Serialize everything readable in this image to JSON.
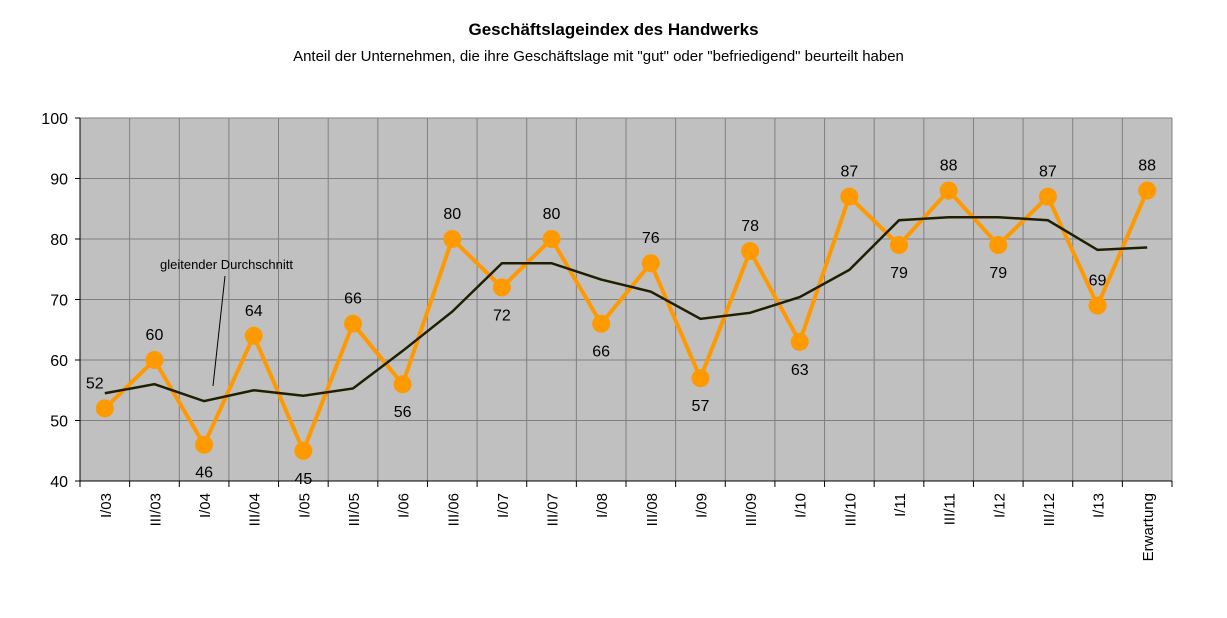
{
  "chart_data": {
    "type": "line",
    "title": "Geschäftslageindex des Handwerks",
    "subtitle": "Anteil der Unternehmen, die ihre Geschäftslage mit \"gut\" oder \"befriedigend\" beurteilt haben",
    "categories": [
      "I/03",
      "III/03",
      "I/04",
      "III/04",
      "I/05",
      "III/05",
      "I/06",
      "III/06",
      "I/07",
      "III/07",
      "I/08",
      "III/08",
      "I/09",
      "III/09",
      "I/10",
      "III/10",
      "I/11",
      "III/11",
      "I/12",
      "III/12",
      "I/13",
      "Erwartung"
    ],
    "ylim": [
      40,
      100
    ],
    "yticks": [
      40,
      50,
      60,
      70,
      80,
      90,
      100
    ],
    "grid": true,
    "series": [
      {
        "name": "Geschäftslageindex",
        "color": "#ff9900",
        "show_labels": true,
        "values": [
          52,
          60,
          46,
          64,
          45,
          66,
          56,
          80,
          72,
          80,
          66,
          76,
          57,
          78,
          63,
          87,
          79,
          88,
          79,
          87,
          69,
          88
        ],
        "label_position": [
          "above",
          "above",
          "below",
          "above",
          "below",
          "above",
          "below",
          "above",
          "below",
          "above",
          "below",
          "above",
          "below",
          "above",
          "below",
          "above",
          "below",
          "above",
          "below",
          "above",
          "above",
          "above"
        ]
      },
      {
        "name": "gleitender Durchschnitt",
        "color": "#1f1f00",
        "values": [
          54.5,
          56.0,
          53.2,
          55.0,
          54.1,
          55.3,
          61.5,
          68.0,
          76.0,
          76.0,
          73.3,
          71.3,
          66.8,
          67.8,
          70.4,
          74.9,
          83.1,
          83.6,
          83.6,
          83.1,
          78.2,
          78.6
        ]
      }
    ],
    "annotations": [
      {
        "text": "gleitender Durchschnitt",
        "points_to": "gleitender Durchschnitt",
        "category": "I/04"
      }
    ]
  }
}
